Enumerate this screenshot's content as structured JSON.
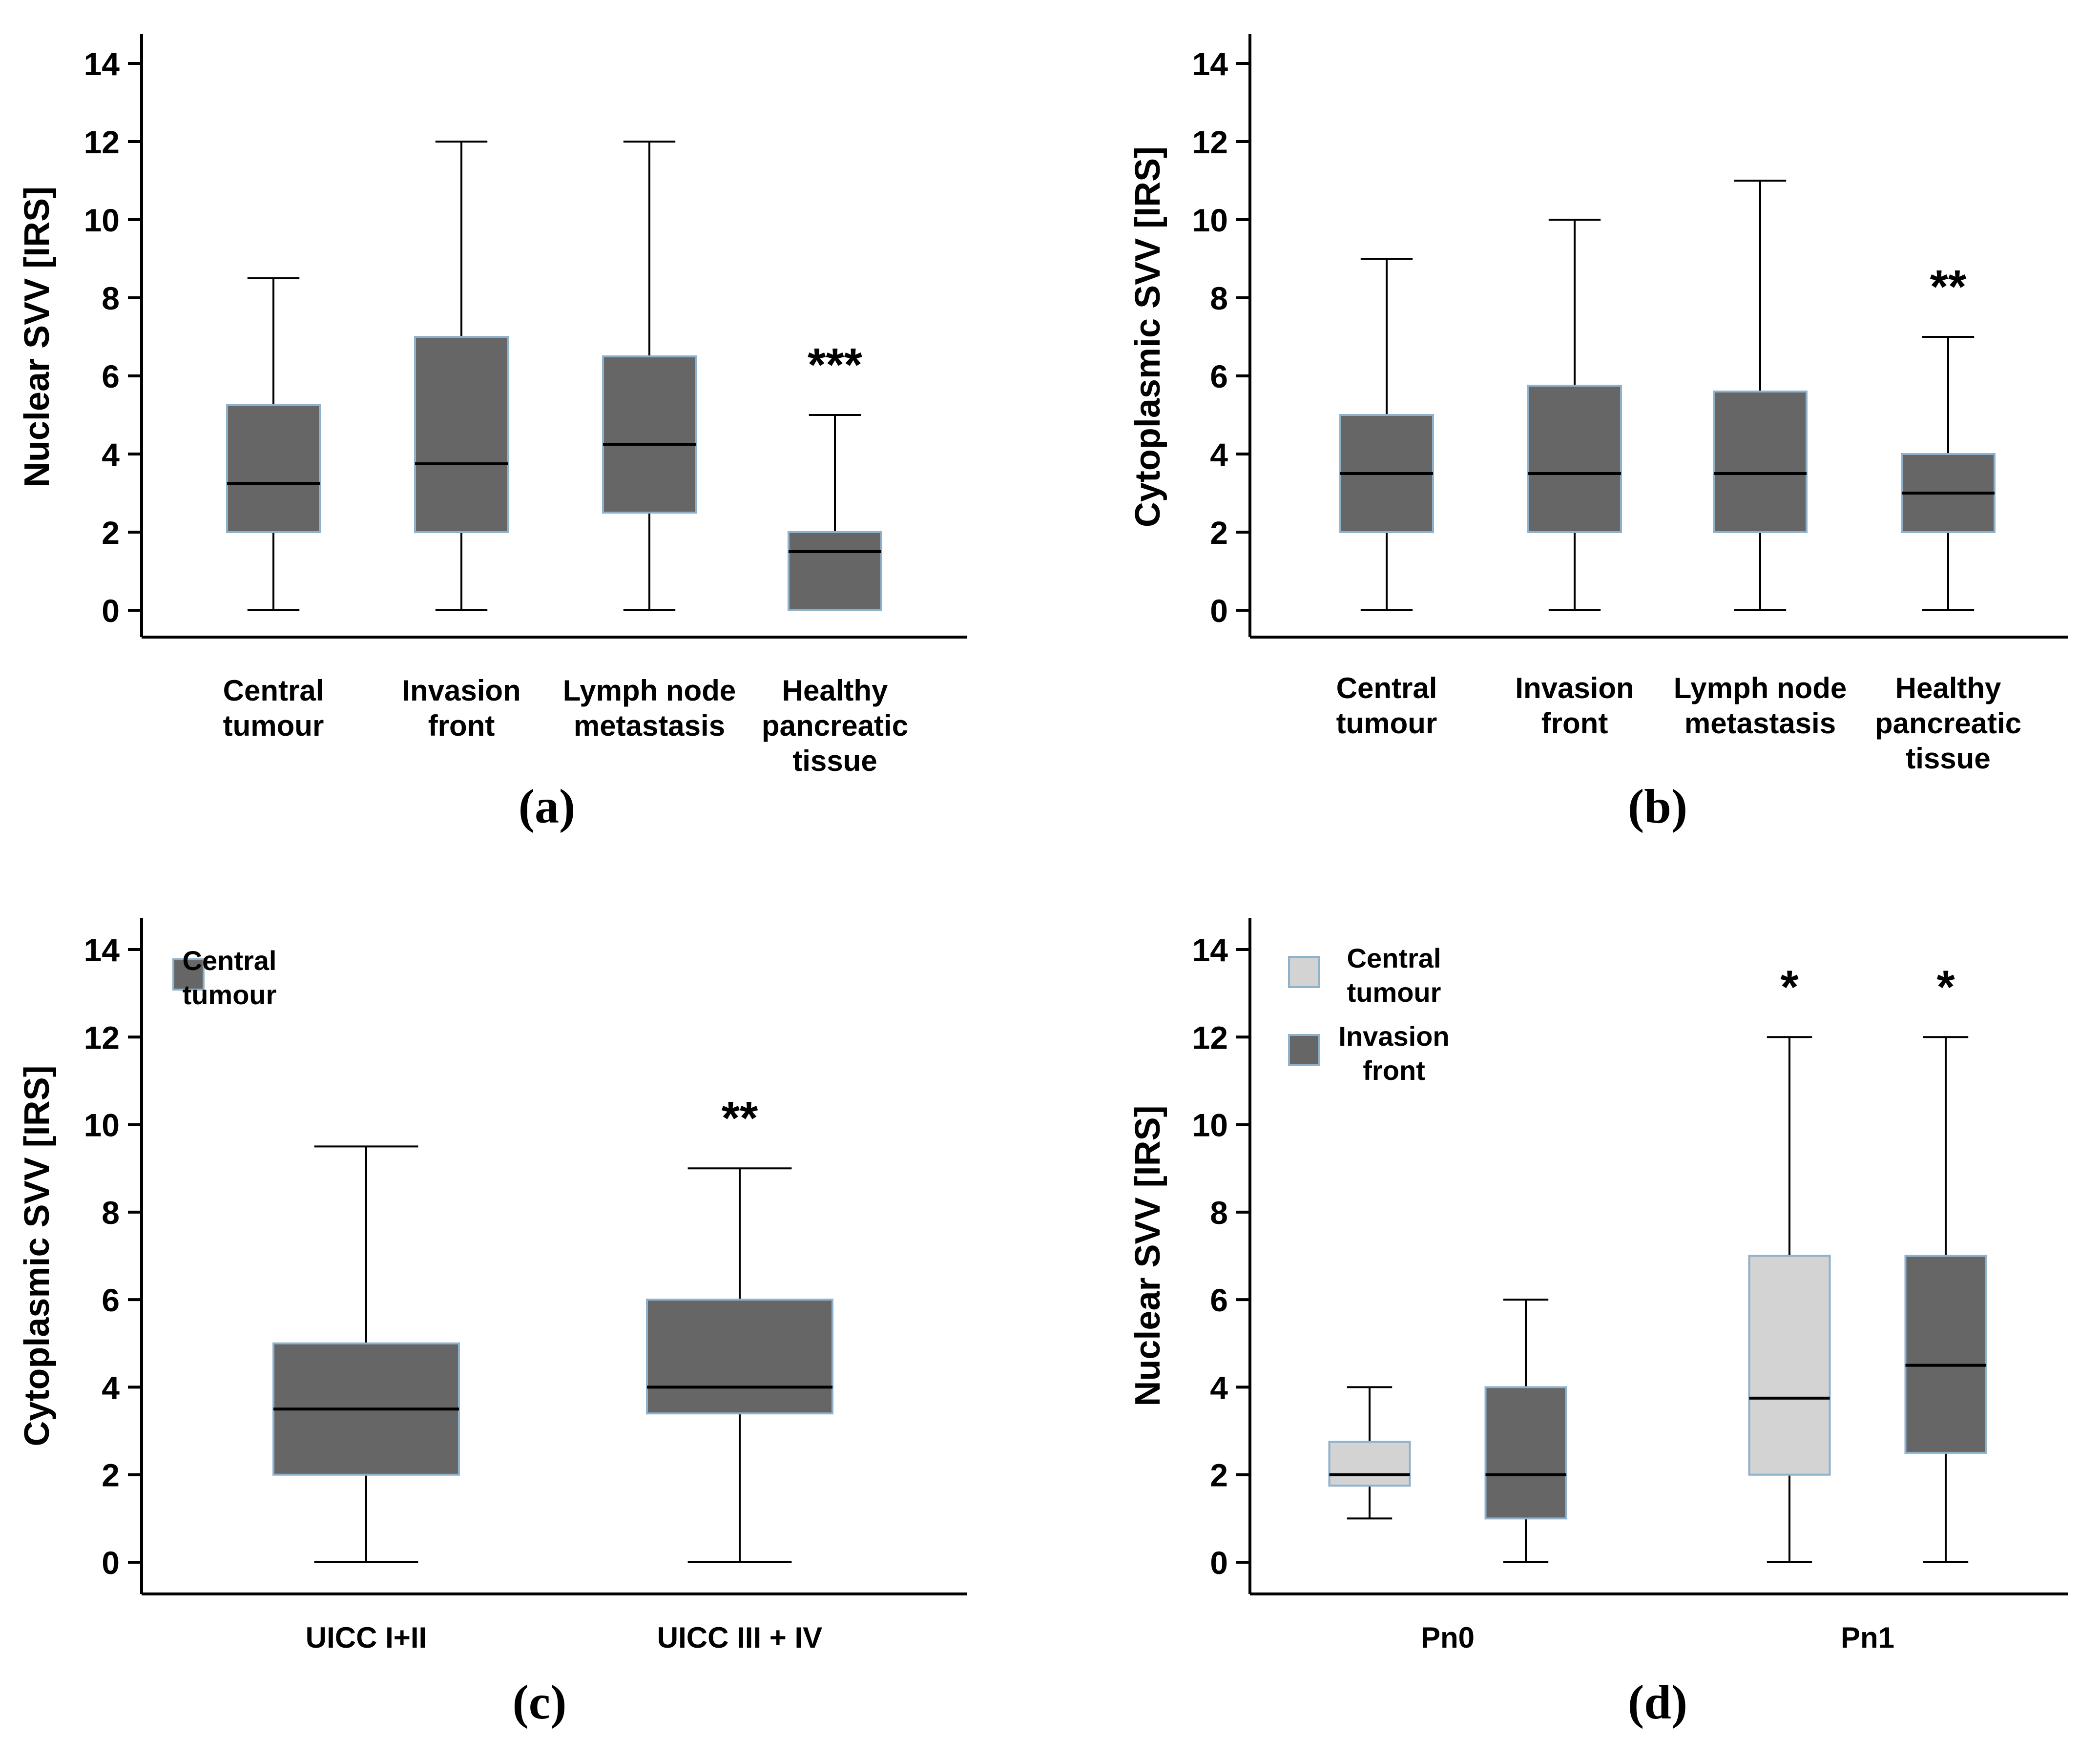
{
  "chart_data": [
    {
      "panel_label": "(a)",
      "type": "boxplot",
      "ylabel": "Nuclear SVV [IRS]",
      "ylim": [
        -0.8,
        14.8
      ],
      "yticks": [
        "0",
        "2",
        "4",
        "6",
        "8",
        "10",
        "12",
        "14"
      ],
      "categories": [
        {
          "label_lines": [
            "Central",
            "tumour"
          ]
        },
        {
          "label_lines": [
            "Invasion",
            "front"
          ]
        },
        {
          "label_lines": [
            "Lymph node",
            "metastasis"
          ]
        },
        {
          "label_lines": [
            "Healthy",
            "pancreatic",
            "tissue"
          ]
        }
      ],
      "series": [
        {
          "name": "",
          "color": "#666666",
          "boxes": [
            {
              "min": 0,
              "q1": 2,
              "median": 3.25,
              "q3": 5.25,
              "max": 8.5,
              "annotation": ""
            },
            {
              "min": 0,
              "q1": 2,
              "median": 3.75,
              "q3": 7,
              "max": 12,
              "annotation": ""
            },
            {
              "min": 0,
              "q1": 2.5,
              "median": 4.25,
              "q3": 6.5,
              "max": 12,
              "annotation": ""
            },
            {
              "min": 0,
              "q1": 0,
              "median": 1.5,
              "q3": 2,
              "max": 5,
              "annotation": "***"
            }
          ]
        }
      ],
      "legend": []
    },
    {
      "panel_label": "(b)",
      "type": "boxplot",
      "ylabel": "Cytoplasmic SVV [IRS]",
      "ylim": [
        -0.8,
        14.8
      ],
      "yticks": [
        "0",
        "2",
        "4",
        "6",
        "8",
        "10",
        "12",
        "14"
      ],
      "categories": [
        {
          "label_lines": [
            "Central",
            "tumour"
          ]
        },
        {
          "label_lines": [
            "Invasion",
            "front"
          ]
        },
        {
          "label_lines": [
            "Lymph node",
            "metastasis"
          ]
        },
        {
          "label_lines": [
            "Healthy",
            "pancreatic",
            "tissue"
          ]
        }
      ],
      "series": [
        {
          "name": "",
          "color": "#666666",
          "boxes": [
            {
              "min": 0,
              "q1": 2,
              "median": 3.5,
              "q3": 5,
              "max": 9,
              "annotation": ""
            },
            {
              "min": 0,
              "q1": 2,
              "median": 3.5,
              "q3": 5.75,
              "max": 10,
              "annotation": ""
            },
            {
              "min": 0,
              "q1": 2,
              "median": 3.5,
              "q3": 5.6,
              "max": 11,
              "annotation": ""
            },
            {
              "min": 0,
              "q1": 2,
              "median": 3,
              "q3": 4,
              "max": 7,
              "annotation": "**"
            }
          ]
        }
      ],
      "legend": []
    },
    {
      "panel_label": "(c)",
      "type": "boxplot",
      "ylabel": "Cytoplasmic SVV [IRS]",
      "ylim": [
        -0.8,
        14.8
      ],
      "yticks": [
        "0",
        "2",
        "4",
        "6",
        "8",
        "10",
        "12",
        "14"
      ],
      "categories": [
        {
          "label_lines": [
            "UICC I+II"
          ]
        },
        {
          "label_lines": [
            "UICC III + IV"
          ]
        }
      ],
      "series": [
        {
          "name": "Central tumour",
          "color": "#666666",
          "boxes": [
            {
              "min": 0,
              "q1": 2,
              "median": 3.5,
              "q3": 5,
              "max": 9.5,
              "annotation": ""
            },
            {
              "min": 0,
              "q1": 3.4,
              "median": 4,
              "q3": 6,
              "max": 9,
              "annotation": "**"
            }
          ]
        }
      ],
      "legend": [
        {
          "label_lines": [
            "Central",
            "tumour"
          ],
          "color": "#666666"
        }
      ]
    },
    {
      "panel_label": "(d)",
      "type": "boxplot",
      "ylabel": "Nuclear SVV [IRS]",
      "ylim": [
        -0.8,
        14.8
      ],
      "yticks": [
        "0",
        "2",
        "4",
        "6",
        "8",
        "10",
        "12",
        "14"
      ],
      "categories": [
        {
          "label_lines": [
            "Pn0"
          ]
        },
        {
          "label_lines": [
            "Pn1"
          ]
        }
      ],
      "series": [
        {
          "name": "Central tumour",
          "color": "#d3d3d3",
          "boxes": [
            {
              "min": 1,
              "q1": 1.75,
              "median": 2,
              "q3": 2.75,
              "max": 4,
              "annotation": ""
            },
            {
              "min": 0,
              "q1": 2,
              "median": 3.75,
              "q3": 7,
              "max": 12,
              "annotation": "*"
            }
          ]
        },
        {
          "name": "Invasion front",
          "color": "#666666",
          "boxes": [
            {
              "min": 0,
              "q1": 1,
              "median": 2,
              "q3": 4,
              "max": 6,
              "annotation": ""
            },
            {
              "min": 0,
              "q1": 2.5,
              "median": 4.5,
              "q3": 7,
              "max": 12,
              "annotation": "*"
            }
          ]
        }
      ],
      "legend": [
        {
          "label_lines": [
            "Central",
            "tumour"
          ],
          "color": "#d3d3d3"
        },
        {
          "label_lines": [
            "Invasion",
            "front"
          ],
          "color": "#666666"
        }
      ]
    }
  ]
}
